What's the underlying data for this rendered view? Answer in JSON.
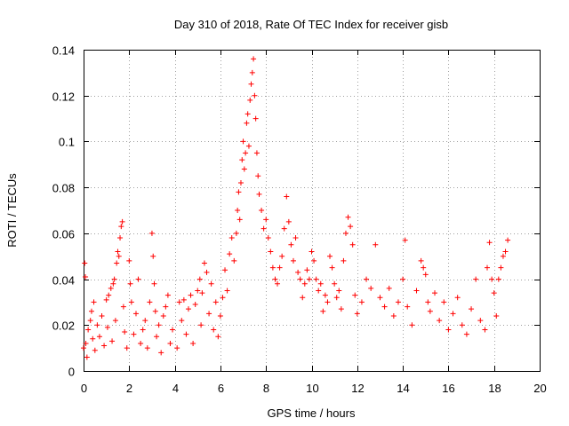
{
  "chart_data": {
    "type": "scatter",
    "title": "Day 310 of 2018, Rate Of TEC Index for receiver gisb",
    "xlabel": "GPS time / hours",
    "ylabel": "ROTI / TECUs",
    "xlim": [
      0,
      20
    ],
    "ylim": [
      0,
      0.14
    ],
    "xticks": [
      "0",
      "2",
      "4",
      "6",
      "8",
      "10",
      "12",
      "14",
      "16",
      "18",
      "20"
    ],
    "yticks": [
      "0",
      "0.02",
      "0.04",
      "0.06",
      "0.08",
      "0.1",
      "0.12",
      "0.14"
    ],
    "grid": true,
    "marker": "+",
    "series": [
      {
        "name": "ROTI",
        "color": "#ff0000",
        "points": [
          [
            0.0,
            0.01
          ],
          [
            0.05,
            0.047
          ],
          [
            0.08,
            0.041
          ],
          [
            0.1,
            0.012
          ],
          [
            0.15,
            0.006
          ],
          [
            0.2,
            0.018
          ],
          [
            0.3,
            0.022
          ],
          [
            0.35,
            0.026
          ],
          [
            0.4,
            0.014
          ],
          [
            0.45,
            0.03
          ],
          [
            0.5,
            0.009
          ],
          [
            0.6,
            0.02
          ],
          [
            0.7,
            0.015
          ],
          [
            0.8,
            0.024
          ],
          [
            0.9,
            0.011
          ],
          [
            1.0,
            0.031
          ],
          [
            1.05,
            0.019
          ],
          [
            1.1,
            0.033
          ],
          [
            1.2,
            0.036
          ],
          [
            1.25,
            0.013
          ],
          [
            1.3,
            0.038
          ],
          [
            1.35,
            0.04
          ],
          [
            1.4,
            0.022
          ],
          [
            1.45,
            0.047
          ],
          [
            1.5,
            0.052
          ],
          [
            1.55,
            0.05
          ],
          [
            1.6,
            0.058
          ],
          [
            1.65,
            0.063
          ],
          [
            1.7,
            0.065
          ],
          [
            1.75,
            0.028
          ],
          [
            1.8,
            0.017
          ],
          [
            1.9,
            0.01
          ],
          [
            2.0,
            0.048
          ],
          [
            2.05,
            0.038
          ],
          [
            2.1,
            0.03
          ],
          [
            2.2,
            0.016
          ],
          [
            2.3,
            0.025
          ],
          [
            2.4,
            0.04
          ],
          [
            2.5,
            0.012
          ],
          [
            2.6,
            0.018
          ],
          [
            2.7,
            0.022
          ],
          [
            2.8,
            0.01
          ],
          [
            2.9,
            0.03
          ],
          [
            3.0,
            0.06
          ],
          [
            3.05,
            0.05
          ],
          [
            3.1,
            0.038
          ],
          [
            3.15,
            0.026
          ],
          [
            3.2,
            0.015
          ],
          [
            3.3,
            0.02
          ],
          [
            3.4,
            0.008
          ],
          [
            3.5,
            0.024
          ],
          [
            3.6,
            0.028
          ],
          [
            3.7,
            0.033
          ],
          [
            3.8,
            0.012
          ],
          [
            3.9,
            0.018
          ],
          [
            4.1,
            0.01
          ],
          [
            4.2,
            0.03
          ],
          [
            4.3,
            0.022
          ],
          [
            4.4,
            0.031
          ],
          [
            4.5,
            0.016
          ],
          [
            4.6,
            0.027
          ],
          [
            4.7,
            0.033
          ],
          [
            4.8,
            0.012
          ],
          [
            4.9,
            0.029
          ],
          [
            5.0,
            0.035
          ],
          [
            5.1,
            0.04
          ],
          [
            5.15,
            0.02
          ],
          [
            5.2,
            0.034
          ],
          [
            5.3,
            0.047
          ],
          [
            5.4,
            0.043
          ],
          [
            5.5,
            0.025
          ],
          [
            5.6,
            0.038
          ],
          [
            5.7,
            0.018
          ],
          [
            5.8,
            0.03
          ],
          [
            5.9,
            0.015
          ],
          [
            6.0,
            0.024
          ],
          [
            6.1,
            0.032
          ],
          [
            6.2,
            0.044
          ],
          [
            6.3,
            0.035
          ],
          [
            6.4,
            0.051
          ],
          [
            6.5,
            0.058
          ],
          [
            6.6,
            0.048
          ],
          [
            6.7,
            0.06
          ],
          [
            6.75,
            0.07
          ],
          [
            6.8,
            0.078
          ],
          [
            6.85,
            0.066
          ],
          [
            6.9,
            0.082
          ],
          [
            6.95,
            0.092
          ],
          [
            7.0,
            0.1
          ],
          [
            7.05,
            0.088
          ],
          [
            7.1,
            0.095
          ],
          [
            7.15,
            0.108
          ],
          [
            7.2,
            0.112
          ],
          [
            7.25,
            0.098
          ],
          [
            7.3,
            0.118
          ],
          [
            7.35,
            0.125
          ],
          [
            7.4,
            0.13
          ],
          [
            7.45,
            0.136
          ],
          [
            7.5,
            0.12
          ],
          [
            7.55,
            0.11
          ],
          [
            7.6,
            0.095
          ],
          [
            7.65,
            0.085
          ],
          [
            7.7,
            0.077
          ],
          [
            7.8,
            0.07
          ],
          [
            7.9,
            0.062
          ],
          [
            8.0,
            0.066
          ],
          [
            8.1,
            0.058
          ],
          [
            8.2,
            0.052
          ],
          [
            8.3,
            0.045
          ],
          [
            8.4,
            0.04
          ],
          [
            8.5,
            0.038
          ],
          [
            8.6,
            0.045
          ],
          [
            8.7,
            0.05
          ],
          [
            8.8,
            0.062
          ],
          [
            8.9,
            0.076
          ],
          [
            9.0,
            0.065
          ],
          [
            9.1,
            0.055
          ],
          [
            9.2,
            0.048
          ],
          [
            9.3,
            0.058
          ],
          [
            9.4,
            0.043
          ],
          [
            9.5,
            0.04
          ],
          [
            9.6,
            0.032
          ],
          [
            9.7,
            0.038
          ],
          [
            9.8,
            0.044
          ],
          [
            9.9,
            0.04
          ],
          [
            10.0,
            0.052
          ],
          [
            10.1,
            0.048
          ],
          [
            10.2,
            0.04
          ],
          [
            10.3,
            0.035
          ],
          [
            10.4,
            0.038
          ],
          [
            10.5,
            0.026
          ],
          [
            10.6,
            0.033
          ],
          [
            10.7,
            0.03
          ],
          [
            10.8,
            0.05
          ],
          [
            10.9,
            0.045
          ],
          [
            11.0,
            0.038
          ],
          [
            11.1,
            0.032
          ],
          [
            11.2,
            0.035
          ],
          [
            11.3,
            0.027
          ],
          [
            11.4,
            0.048
          ],
          [
            11.5,
            0.06
          ],
          [
            11.6,
            0.067
          ],
          [
            11.7,
            0.063
          ],
          [
            11.8,
            0.055
          ],
          [
            11.9,
            0.033
          ],
          [
            12.0,
            0.025
          ],
          [
            12.2,
            0.03
          ],
          [
            12.4,
            0.04
          ],
          [
            12.6,
            0.036
          ],
          [
            12.8,
            0.055
          ],
          [
            13.0,
            0.032
          ],
          [
            13.2,
            0.028
          ],
          [
            13.4,
            0.036
          ],
          [
            13.6,
            0.024
          ],
          [
            13.8,
            0.03
          ],
          [
            14.0,
            0.04
          ],
          [
            14.1,
            0.057
          ],
          [
            14.2,
            0.028
          ],
          [
            14.4,
            0.02
          ],
          [
            14.6,
            0.035
          ],
          [
            14.8,
            0.048
          ],
          [
            14.9,
            0.045
          ],
          [
            15.0,
            0.042
          ],
          [
            15.1,
            0.03
          ],
          [
            15.2,
            0.026
          ],
          [
            15.4,
            0.034
          ],
          [
            15.6,
            0.022
          ],
          [
            15.8,
            0.03
          ],
          [
            16.0,
            0.018
          ],
          [
            16.2,
            0.025
          ],
          [
            16.4,
            0.032
          ],
          [
            16.6,
            0.02
          ],
          [
            16.8,
            0.016
          ],
          [
            17.0,
            0.027
          ],
          [
            17.2,
            0.04
          ],
          [
            17.4,
            0.022
          ],
          [
            17.6,
            0.018
          ],
          [
            17.7,
            0.045
          ],
          [
            17.8,
            0.056
          ],
          [
            17.9,
            0.04
          ],
          [
            18.0,
            0.034
          ],
          [
            18.1,
            0.024
          ],
          [
            18.2,
            0.04
          ],
          [
            18.3,
            0.045
          ],
          [
            18.4,
            0.05
          ],
          [
            18.5,
            0.052
          ],
          [
            18.6,
            0.057
          ]
        ]
      }
    ]
  }
}
